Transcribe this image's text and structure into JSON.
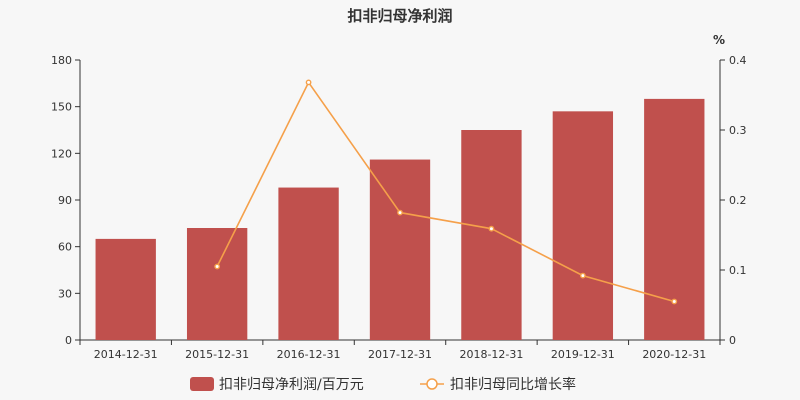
{
  "chart_data": {
    "type": "bar",
    "title": "扣非归母净利润",
    "categories": [
      "2014-12-31",
      "2015-12-31",
      "2016-12-31",
      "2017-12-31",
      "2018-12-31",
      "2019-12-31",
      "2020-12-31"
    ],
    "y_left": {
      "range": [
        0,
        180
      ],
      "ticks": [
        "0",
        "30",
        "60",
        "90",
        "120",
        "150",
        "180"
      ]
    },
    "y_right": {
      "unit": "%",
      "range": [
        0,
        0.4
      ],
      "ticks": [
        "0",
        "0.1",
        "0.2",
        "0.3",
        "0.4"
      ]
    },
    "series": [
      {
        "name": "扣非归母净利润/百万元",
        "type": "bar",
        "axis": "left",
        "color": "#c0504d",
        "values": [
          65,
          72,
          98,
          116,
          135,
          147,
          155
        ]
      },
      {
        "name": "扣非归母同比增长率",
        "type": "line",
        "axis": "right",
        "color": "#f5a04a",
        "values": [
          null,
          0.105,
          0.368,
          0.182,
          0.159,
          0.092,
          0.055
        ]
      }
    ],
    "grid": false,
    "legend_position": "bottom-center"
  }
}
